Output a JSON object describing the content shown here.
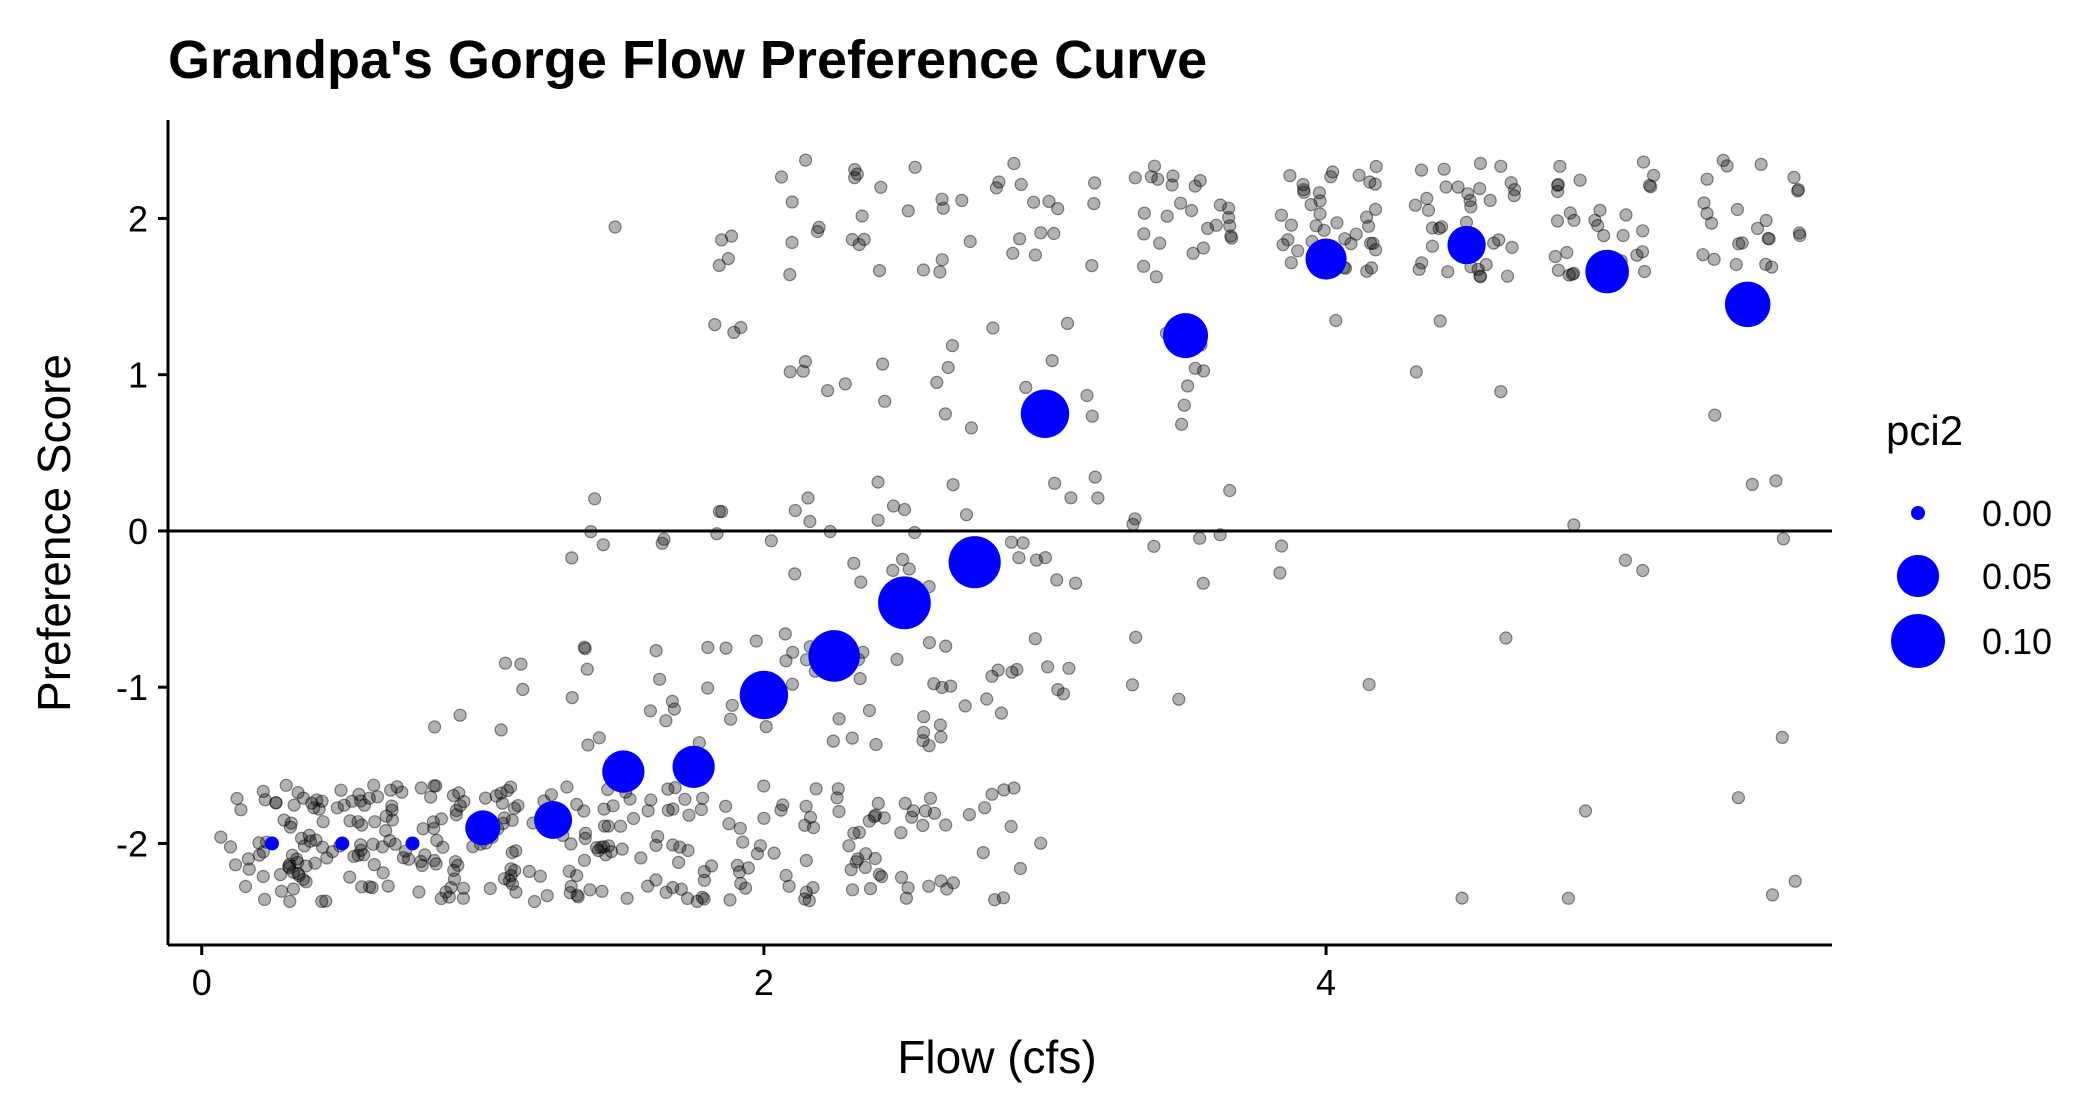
{
  "chart_data": {
    "type": "scatter",
    "title": "Grandpa's Gorge Flow Preference Curve",
    "xlabel": "Flow (cfs)",
    "ylabel": "Preference Score",
    "xlim": [
      -0.12,
      5.8
    ],
    "ylim": [
      -2.65,
      2.63
    ],
    "x_ticks": [
      0,
      2,
      4
    ],
    "x_tick_labels": [
      "0",
      "2",
      "4"
    ],
    "y_ticks": [
      -2,
      -1,
      0,
      1,
      2
    ],
    "y_tick_labels": [
      "-2",
      "-1",
      "0",
      "1",
      "2"
    ],
    "reference_line_y": 0,
    "grid": false,
    "raw_point_color": "#000000",
    "raw_point_opacity": 0.3,
    "mean_point_color": "#0000ff",
    "legend": {
      "title": "pci2",
      "placement": "right",
      "entries": [
        {
          "label": "0.00",
          "value": 0.0
        },
        {
          "label": "0.05",
          "value": 0.05
        },
        {
          "label": "0.10",
          "value": 0.1
        }
      ]
    },
    "series": [
      {
        "name": "pci2",
        "points": [
          {
            "x": 0.25,
            "y": -2.0,
            "pci2": 0.0
          },
          {
            "x": 0.5,
            "y": -2.0,
            "pci2": 0.0
          },
          {
            "x": 0.75,
            "y": -2.0,
            "pci2": 0.0
          },
          {
            "x": 1.0,
            "y": -1.9,
            "pci2": 0.028
          },
          {
            "x": 1.25,
            "y": -1.85,
            "pci2": 0.036
          },
          {
            "x": 1.5,
            "y": -1.54,
            "pci2": 0.05
          },
          {
            "x": 1.75,
            "y": -1.51,
            "pci2": 0.05
          },
          {
            "x": 2.0,
            "y": -1.05,
            "pci2": 0.074
          },
          {
            "x": 2.25,
            "y": -0.8,
            "pci2": 0.088
          },
          {
            "x": 2.5,
            "y": -0.46,
            "pci2": 0.094
          },
          {
            "x": 2.75,
            "y": -0.2,
            "pci2": 0.091
          },
          {
            "x": 3.0,
            "y": 0.75,
            "pci2": 0.074
          },
          {
            "x": 3.5,
            "y": 1.25,
            "pci2": 0.06
          },
          {
            "x": 4.0,
            "y": 1.74,
            "pci2": 0.046
          },
          {
            "x": 4.5,
            "y": 1.83,
            "pci2": 0.037
          },
          {
            "x": 5.0,
            "y": 1.66,
            "pci2": 0.055
          },
          {
            "x": 5.5,
            "y": 1.45,
            "pci2": 0.062
          }
        ]
      }
    ],
    "raw_responses": [
      {
        "x": 0.25,
        "dist": {
          "-2": 40
        }
      },
      {
        "x": 0.5,
        "dist": {
          "-2": 40
        }
      },
      {
        "x": 0.75,
        "dist": {
          "-2": 40
        }
      },
      {
        "x": 1.0,
        "dist": {
          "-2": 34,
          "-1": 2
        }
      },
      {
        "x": 1.25,
        "dist": {
          "-2": 30,
          "-1": 6,
          "0": 1
        }
      },
      {
        "x": 1.5,
        "dist": {
          "-2": 26,
          "-1": 7,
          "0": 3,
          "2": 1
        }
      },
      {
        "x": 1.75,
        "dist": {
          "-2": 24,
          "-1": 8,
          "0": 4,
          "1": 1,
          "2": 2
        }
      },
      {
        "x": 2.0,
        "dist": {
          "-2": 22,
          "-1": 8,
          "0": 3,
          "1": 3,
          "2": 6
        }
      },
      {
        "x": 2.25,
        "dist": {
          "-2": 20,
          "-1": 8,
          "0": 6,
          "1": 4,
          "2": 7
        }
      },
      {
        "x": 2.5,
        "dist": {
          "-2": 16,
          "-1": 9,
          "0": 8,
          "1": 3,
          "2": 8
        }
      },
      {
        "x": 2.75,
        "dist": {
          "-2": 12,
          "-1": 13,
          "0": 8,
          "1": 6,
          "2": 9
        }
      },
      {
        "x": 3.0,
        "dist": {
          "-2": 3,
          "-1": 7,
          "0": 8,
          "1": 5,
          "2": 12
        }
      },
      {
        "x": 3.5,
        "dist": {
          "-1": 3,
          "0": 7,
          "1": 7,
          "2": 26
        }
      },
      {
        "x": 4.0,
        "dist": {
          "-1": 1,
          "0": 2,
          "1": 1,
          "2": 40
        }
      },
      {
        "x": 4.5,
        "dist": {
          "-2": 1,
          "-1": 1,
          "1": 3,
          "2": 36
        }
      },
      {
        "x": 5.0,
        "dist": {
          "-2": 2,
          "0": 3,
          "2": 30
        }
      },
      {
        "x": 5.5,
        "dist": {
          "-2": 3,
          "-1": 1,
          "0": 3,
          "1": 1,
          "2": 24
        }
      }
    ]
  }
}
